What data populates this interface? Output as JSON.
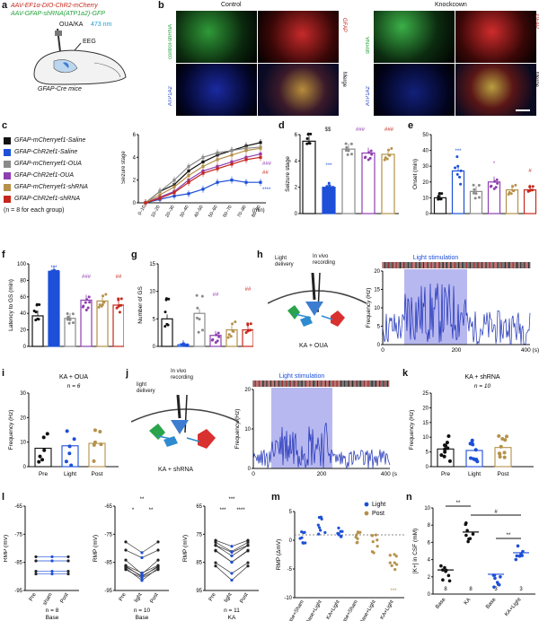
{
  "colors": {
    "blue": "#1d4fd8",
    "purple": "#8e3fb0",
    "gold": "#b59149",
    "red": "#c4281c",
    "gray": "#8a8a8a",
    "black": "#111111",
    "green": "#24a23a",
    "hotpink": "#d8266e"
  },
  "panel_a": {
    "letter": "a",
    "line1": "AAV-EF1α-DIO-ChR2-mCherry",
    "line2": "AAV-GFAP-shRNA(ATP1a2)-GFP",
    "line3": "OUA/KA",
    "line3b": "473 nm",
    "eeg": "EEG",
    "mouse": "GFAP-Cre mice"
  },
  "panel_b": {
    "letter": "b",
    "control": "Control",
    "knockdown": "Knockcown",
    "tiles": [
      "control-shRNA",
      "GFAP",
      "ATP1A2",
      "Merge",
      "shRNA",
      "GFAP",
      "ATP1A2",
      "Merge"
    ]
  },
  "panel_c": {
    "letter": "c",
    "legend": [
      "GFAP-mCherryef1-Saline",
      "GFAP-ChR2ef1-Saline",
      "GFAP-mCherryef1-OUA",
      "GFAP-ChR2ef1-OUA",
      "GFAP-mCherryef1-shRNA",
      "GFAP-ChR2ef1-shRNA"
    ],
    "note": "(n = 8 for each group)",
    "ylabel": "Seizure stage",
    "xunit": "(min)",
    "sig": [
      "###",
      "##",
      "****"
    ],
    "xticks": [
      "0–10",
      "10–20",
      "20–30",
      "30–40",
      "40–50",
      "50–60",
      "60–70",
      "70–80",
      "80–90"
    ],
    "yticks": [
      "0",
      "2",
      "4",
      "6"
    ]
  },
  "panel_d": {
    "letter": "d",
    "ylabel": "Seizure stage",
    "sig": [
      "$$",
      "###",
      "###",
      "***"
    ],
    "yticks": [
      "0",
      "2",
      "4",
      "6"
    ]
  },
  "panel_e": {
    "letter": "e",
    "ylabel": "Onset (min)",
    "sig": [
      "***",
      "*",
      "#"
    ],
    "yticks": [
      "0",
      "10",
      "20",
      "30",
      "40",
      "50"
    ]
  },
  "panel_f": {
    "letter": "f",
    "ylabel": "Latency to GS (min)",
    "sig": [
      "***",
      "###",
      "##"
    ],
    "yticks": [
      "0",
      "20",
      "40",
      "60",
      "80",
      "100"
    ]
  },
  "panel_g": {
    "letter": "g",
    "ylabel": "Number of GS",
    "sig": [
      "##",
      "##"
    ],
    "yticks": [
      "0",
      "5",
      "10",
      "15"
    ]
  },
  "panel_h": {
    "letter": "h",
    "light": "Light delivery",
    "invivo": "In vivo recording",
    "stim": "Light stimulation",
    "ylabel": "Frequency (Hz)",
    "model": "KA + OUA",
    "xticks": [
      "0",
      "200",
      "400 (s)"
    ],
    "yticks": [
      "0",
      "5",
      "10",
      "15",
      "20"
    ]
  },
  "panel_i": {
    "letter": "i",
    "title": "KA + OUA",
    "n": "n = 6",
    "ylabel": "Frequency (Hz)",
    "xticks": [
      "Pre",
      "Light",
      "Post"
    ],
    "yticks": [
      "0",
      "10",
      "20",
      "30"
    ]
  },
  "panel_j": {
    "letter": "j",
    "light": "light delivery",
    "invivo": "In vivo recording",
    "stim": "Light stimulation",
    "ylabel": "Frequency (Hz)",
    "model": "KA + shRNA",
    "xticks": [
      "0",
      "200",
      "400 (s)"
    ],
    "yticks": [
      "0",
      "10",
      "20"
    ]
  },
  "panel_k": {
    "letter": "k",
    "title": "KA + shRNA",
    "n": "n = 10",
    "ylabel": "Frequency (Hz)",
    "xticks": [
      "Pre",
      "Light",
      "Post"
    ],
    "yticks": [
      "0",
      "5",
      "10",
      "15",
      "20",
      "25"
    ]
  },
  "panel_l": {
    "letter": "l",
    "ylabel": "RMP (mV)",
    "p1": {
      "n": "n = 8",
      "group": "Base",
      "x": [
        "Pre",
        "sham",
        "Post"
      ],
      "yticks": [
        "-65",
        "-75",
        "-85",
        "-95"
      ]
    },
    "p2": {
      "n": "n = 10",
      "group": "Base",
      "x": [
        "Pre",
        "light",
        "Post"
      ],
      "sig": [
        "**",
        "*",
        "**"
      ],
      "yticks": [
        "-65",
        "-75",
        "-85",
        "-95"
      ]
    },
    "p3": {
      "n": "n = 11",
      "group": "KA",
      "x": [
        "Pre",
        "light",
        "Post"
      ],
      "sig": [
        "***",
        "***",
        "****"
      ],
      "yticks": [
        "65",
        "75",
        "85",
        "95"
      ]
    }
  },
  "panel_m": {
    "letter": "m",
    "ylabel": "RMP (ΔmV)",
    "legend": [
      "Light",
      "Post"
    ],
    "xticks": [
      "Base+Sham",
      "Base+Light",
      "KA+Light",
      "Base+Sham",
      "Base+Light",
      "KA+Light"
    ],
    "sig": "***",
    "yticks": [
      "5",
      "0",
      "-5",
      "-10"
    ]
  },
  "panel_n": {
    "letter": "n",
    "ylabel": "[K+] in CSF (mM)",
    "sig": [
      "**",
      "#",
      "**"
    ],
    "xticks": [
      "Base",
      "KA",
      "Base",
      "KA+Light"
    ],
    "nums": [
      "8",
      "8",
      "3",
      "3"
    ],
    "yticks": [
      "0",
      "2",
      "4",
      "6",
      "8",
      "10"
    ]
  }
}
